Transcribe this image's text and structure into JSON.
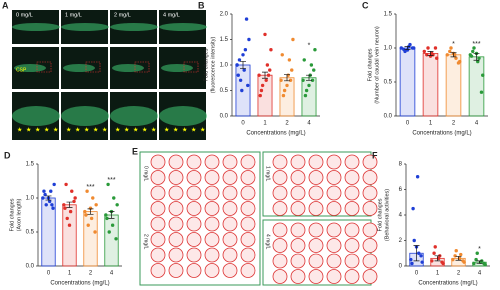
{
  "panels": {
    "A": {
      "panel": "A",
      "conditions": [
        "0 mg/L",
        "1 mg/L",
        "2 mg/L",
        "4 mg/L"
      ],
      "marker": "CSP"
    },
    "E": {
      "panel": "E",
      "conditions": [
        "0 mg/L",
        "1 mg/L",
        "2 mg/L",
        "4 mg/L"
      ]
    }
  },
  "chart_data": [
    {
      "type": "bar",
      "panel": "B",
      "categories": [
        "0",
        "1",
        "2",
        "4"
      ],
      "xlabel": "Concentrations (mg/L)",
      "ylabel": [
        "Fold changes",
        "(fluorescence intensity)"
      ],
      "values": [
        1.0,
        0.8,
        0.75,
        0.75
      ],
      "errors": [
        0.07,
        0.06,
        0.06,
        0.05
      ],
      "sig": [
        null,
        null,
        null,
        "*"
      ],
      "colors": [
        "#1f3fd6",
        "#e0302a",
        "#f08a30",
        "#2a9a3a"
      ],
      "points": [
        [
          1.0,
          1.3,
          0.7,
          1.5,
          0.9,
          1.1,
          0.6,
          1.2,
          0.8,
          1.9,
          0.5,
          1.0
        ],
        [
          0.8,
          1.0,
          0.6,
          1.3,
          0.7,
          0.5,
          0.9,
          1.6,
          0.4,
          0.8
        ],
        [
          0.7,
          1.1,
          0.5,
          1.5,
          0.8,
          0.4,
          0.9,
          0.6,
          1.2,
          0.7
        ],
        [
          0.7,
          1.0,
          0.5,
          1.3,
          0.8,
          0.4,
          0.9,
          0.6,
          1.1,
          0.7
        ]
      ],
      "ylim": [
        0,
        2.0
      ],
      "yticks": [
        {
          "value": 0,
          "label": "0.0"
        },
        {
          "value": 0.5,
          "label": "0.5"
        },
        {
          "value": 1,
          "label": "1.0"
        },
        {
          "value": 1.5,
          "label": "1.5"
        },
        {
          "value": 2,
          "label": "2.0"
        }
      ]
    },
    {
      "type": "bar",
      "panel": "C",
      "categories": [
        "0",
        "1",
        "2",
        "4"
      ],
      "xlabel": "Concentrations (mg/L)",
      "ylabel": [
        "Fold changes",
        "(Number of caudal vein neuron)"
      ],
      "values": [
        1.0,
        0.92,
        0.9,
        0.87
      ],
      "errors": [
        0.02,
        0.03,
        0.03,
        0.05
      ],
      "sig": [
        null,
        null,
        "*",
        "***"
      ],
      "colors": [
        "#1f3fd6",
        "#e0302a",
        "#f08a30",
        "#2a9a3a"
      ],
      "points": [
        [
          1.0,
          1.05,
          0.95,
          1.0,
          1.02,
          0.98,
          1.0,
          0.97
        ],
        [
          0.95,
          0.9,
          1.0,
          0.85,
          0.92,
          0.9,
          1.0,
          0.88
        ],
        [
          0.9,
          0.85,
          1.0,
          0.8,
          0.9,
          0.95,
          0.78,
          0.92
        ],
        [
          0.9,
          0.85,
          1.0,
          0.6,
          0.8,
          0.95,
          0.35,
          0.92,
          0.88
        ]
      ],
      "ylim": [
        0,
        1.5
      ],
      "yticks": [
        {
          "value": 0,
          "label": "0.0"
        },
        {
          "value": 0.5,
          "label": "0.5"
        },
        {
          "value": 1,
          "label": "1.0"
        },
        {
          "value": 1.5,
          "label": "1.5"
        }
      ]
    },
    {
      "type": "bar",
      "panel": "D",
      "categories": [
        "0",
        "1",
        "2",
        "4"
      ],
      "xlabel": "Concentrations (mg/L)",
      "ylabel": [
        "Fold changes",
        "(Axon length)"
      ],
      "values": [
        1.0,
        0.9,
        0.8,
        0.75
      ],
      "errors": [
        0.03,
        0.04,
        0.04,
        0.05
      ],
      "sig": [
        null,
        null,
        "***",
        "***"
      ],
      "colors": [
        "#1f3fd6",
        "#e0302a",
        "#f08a30",
        "#2a9a3a"
      ],
      "points": [
        [
          1.0,
          1.1,
          0.9,
          1.2,
          0.95,
          1.05,
          0.85,
          1.0,
          1.1,
          0.9
        ],
        [
          0.9,
          1.1,
          0.7,
          1.0,
          0.8,
          1.2,
          0.95,
          0.6,
          0.85
        ],
        [
          0.8,
          1.0,
          0.6,
          0.9,
          0.7,
          1.1,
          0.5,
          0.85,
          0.75
        ],
        [
          0.75,
          1.0,
          0.5,
          0.9,
          0.6,
          1.2,
          0.4,
          0.8,
          0.7
        ]
      ],
      "ylim": [
        0,
        1.5
      ],
      "yticks": [
        {
          "value": 0,
          "label": "0.0"
        },
        {
          "value": 0.5,
          "label": "0.5"
        },
        {
          "value": 1,
          "label": "1.0"
        },
        {
          "value": 1.5,
          "label": "1.5"
        }
      ]
    },
    {
      "type": "bar",
      "panel": "F",
      "categories": [
        "0",
        "1",
        "2",
        "4"
      ],
      "xlabel": "Concentrations (mg/L)",
      "ylabel": [
        "Fold changes",
        "(Behavioral activities)"
      ],
      "values": [
        1.0,
        0.6,
        0.6,
        0.3
      ],
      "errors": [
        0.6,
        0.2,
        0.15,
        0.1
      ],
      "sig": [
        null,
        null,
        null,
        "*"
      ],
      "colors": [
        "#1f3fd6",
        "#e0302a",
        "#f08a30",
        "#2a9a3a"
      ],
      "points": [
        [
          0.5,
          1.0,
          2.0,
          0.3,
          7.0,
          4.5,
          0.8,
          1.5,
          0.2
        ],
        [
          0.4,
          0.8,
          1.5,
          0.2,
          0.6,
          1.0,
          0.3
        ],
        [
          0.5,
          0.9,
          1.2,
          0.3,
          0.6,
          0.8,
          0.4
        ],
        [
          0.2,
          0.4,
          1.0,
          0.1,
          0.3,
          0.5,
          0.2
        ]
      ],
      "ylim": [
        0,
        8
      ],
      "yticks": [
        0,
        2,
        4,
        6,
        8
      ]
    }
  ]
}
